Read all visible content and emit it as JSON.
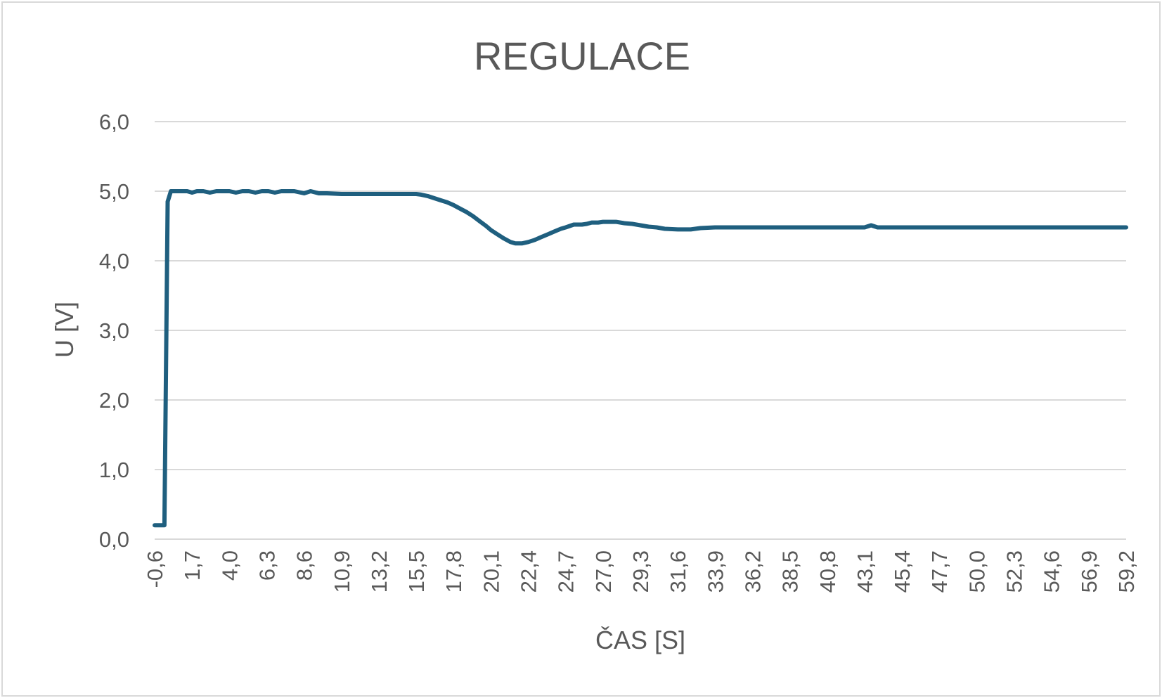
{
  "chart_data": {
    "type": "line",
    "title": "REGULACE",
    "xlabel": "ČAS [S]",
    "ylabel": "U [V]",
    "ylim": [
      0,
      6
    ],
    "xlim": [
      -0.6,
      59.2
    ],
    "y_ticks": [
      "0,0",
      "1,0",
      "2,0",
      "3,0",
      "4,0",
      "5,0",
      "6,0"
    ],
    "x_ticks": [
      "-0,6",
      "1,7",
      "4,0",
      "6,3",
      "8,6",
      "10,9",
      "13,2",
      "15,5",
      "17,8",
      "20,1",
      "22,4",
      "24,7",
      "27,0",
      "29,3",
      "31,6",
      "33,9",
      "36,2",
      "38,5",
      "40,8",
      "43,1",
      "45,4",
      "47,7",
      "50,0",
      "52,3",
      "54,6",
      "56,9",
      "59,2"
    ],
    "grid": true,
    "legend": "none",
    "series": [
      {
        "color": "#1f5f7f",
        "x": [
          -0.6,
          -0.2,
          0.0,
          0.1,
          0.2,
          0.4,
          0.6,
          1.0,
          1.4,
          1.7,
          2.0,
          2.4,
          2.8,
          3.2,
          3.6,
          4.0,
          4.4,
          4.8,
          5.2,
          5.6,
          6.0,
          6.4,
          6.8,
          7.2,
          7.6,
          8.0,
          8.6,
          9.0,
          9.5,
          10.0,
          10.9,
          12.0,
          13.2,
          14.5,
          15.5,
          15.8,
          16.2,
          16.6,
          17.0,
          17.4,
          17.8,
          18.2,
          18.6,
          19.0,
          19.4,
          19.8,
          20.1,
          20.5,
          20.9,
          21.3,
          21.6,
          22.0,
          22.4,
          22.8,
          23.2,
          23.6,
          24.0,
          24.4,
          24.7,
          25.2,
          25.7,
          26.0,
          26.3,
          26.7,
          27.0,
          27.4,
          27.8,
          28.3,
          28.8,
          29.3,
          29.8,
          30.3,
          30.8,
          31.6,
          32.4,
          33.0,
          33.9,
          36.2,
          38.5,
          40.8,
          43.1,
          43.5,
          43.9,
          45.4,
          47.7,
          50.0,
          52.3,
          54.6,
          56.9,
          59.2
        ],
        "y": [
          0.2,
          0.2,
          0.2,
          2.5,
          4.85,
          5.0,
          5.0,
          5.0,
          5.0,
          4.98,
          5.0,
          5.0,
          4.98,
          5.0,
          5.0,
          5.0,
          4.98,
          5.0,
          5.0,
          4.98,
          5.0,
          5.0,
          4.98,
          5.0,
          5.0,
          5.0,
          4.97,
          5.0,
          4.97,
          4.97,
          4.96,
          4.96,
          4.96,
          4.96,
          4.96,
          4.95,
          4.93,
          4.9,
          4.87,
          4.84,
          4.8,
          4.75,
          4.7,
          4.64,
          4.57,
          4.5,
          4.44,
          4.38,
          4.32,
          4.27,
          4.25,
          4.25,
          4.27,
          4.3,
          4.34,
          4.38,
          4.42,
          4.46,
          4.48,
          4.52,
          4.52,
          4.53,
          4.55,
          4.55,
          4.56,
          4.56,
          4.56,
          4.54,
          4.53,
          4.51,
          4.49,
          4.48,
          4.46,
          4.45,
          4.45,
          4.47,
          4.48,
          4.48,
          4.48,
          4.48,
          4.48,
          4.51,
          4.48,
          4.48,
          4.48,
          4.48,
          4.48,
          4.48,
          4.48,
          4.48
        ]
      }
    ]
  }
}
